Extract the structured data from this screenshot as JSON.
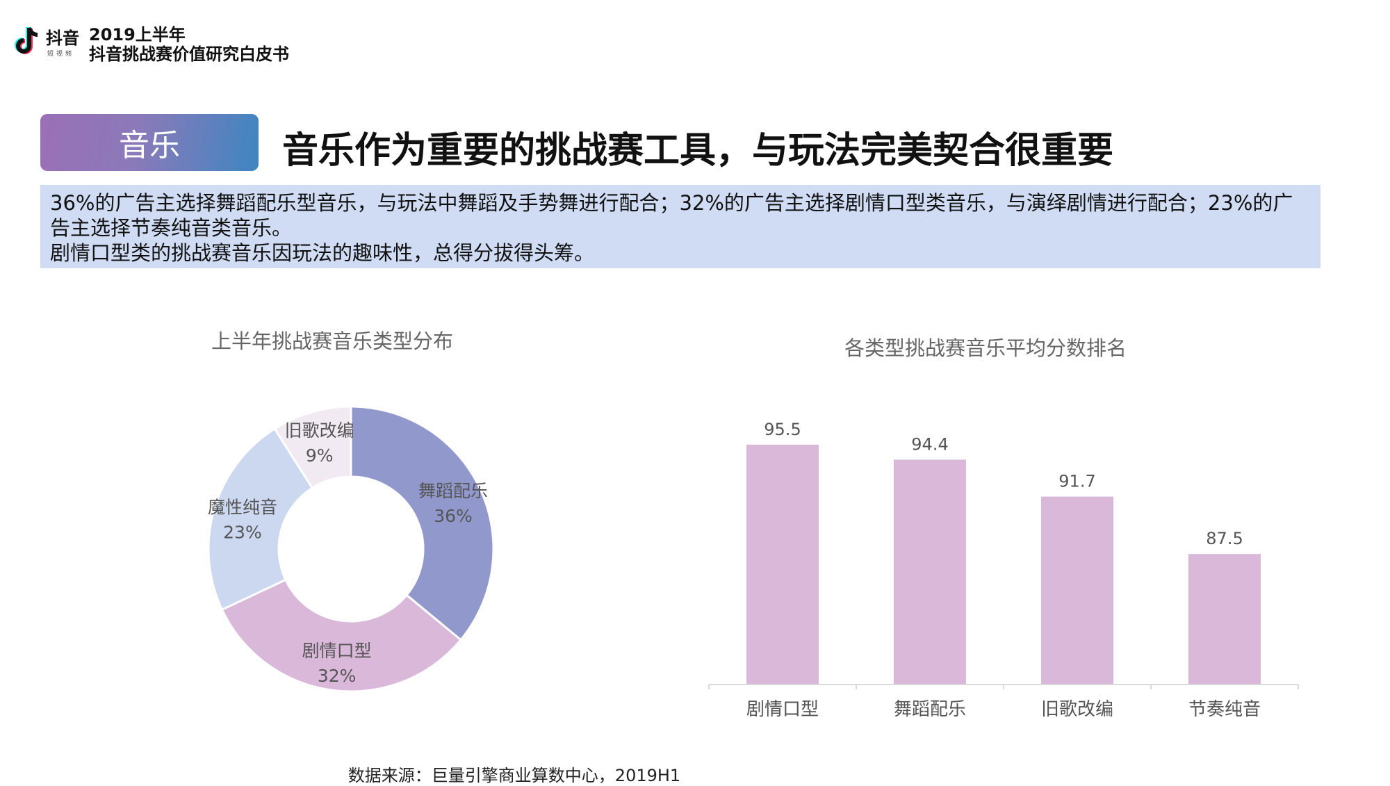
{
  "header": {
    "logo_text": "抖音",
    "logo_sub": "短视频",
    "report_year": "2019上半年",
    "report_title": "抖音挑战赛价值研究白皮书"
  },
  "section": {
    "tag": "音乐",
    "headline": "音乐作为重要的挑战赛工具，与玩法完美契合很重要"
  },
  "summary": {
    "line1": "36%的广告主选择舞蹈配乐型音乐，与玩法中舞蹈及手势舞进行配合；32%的广告主选择剧情口型类音乐，与演绎剧情进行配合；23%的广告主选择节奏纯音类音乐。",
    "line2": "剧情口型类的挑战赛音乐因玩法的趣味性，总得分拔得头筹。"
  },
  "chart_data": [
    {
      "type": "pie",
      "variant": "donut",
      "title": "上半年挑战赛音乐类型分布",
      "slices": [
        {
          "label": "舞蹈配乐",
          "value": 36,
          "display": "36%",
          "color": "#9199cc"
        },
        {
          "label": "剧情口型",
          "value": 32,
          "display": "32%",
          "color": "#dab8d9"
        },
        {
          "label": "魔性纯音",
          "value": 23,
          "display": "23%",
          "color": "#cbd8f0"
        },
        {
          "label": "旧歌改编",
          "value": 9,
          "display": "9%",
          "color": "#f1eaf3"
        }
      ]
    },
    {
      "type": "bar",
      "title": "各类型挑战赛音乐平均分数排名",
      "categories": [
        "剧情口型",
        "舞蹈配乐",
        "旧歌改编",
        "节奏纯音"
      ],
      "values": [
        95.5,
        94.4,
        91.7,
        87.5
      ],
      "value_labels": [
        "95.5",
        "94.4",
        "91.7",
        "87.5"
      ],
      "color": "#dab8d9",
      "baseline": 78,
      "ylim": [
        78,
        96
      ],
      "grid": false
    }
  ],
  "source": "数据来源：巨量引擎商业算数中心，2019H1"
}
